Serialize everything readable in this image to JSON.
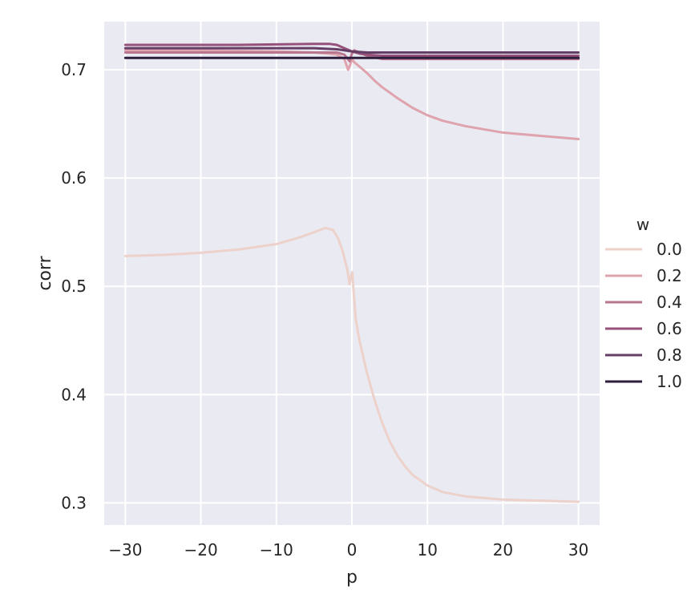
{
  "chart_data": {
    "type": "line",
    "xlabel": "p",
    "ylabel": "corr",
    "xlim": [
      -32.8,
      32.8
    ],
    "ylim": [
      0.2795,
      0.7445
    ],
    "xticks": [
      -30,
      -20,
      -10,
      0,
      10,
      20,
      30
    ],
    "xtick_labels": [
      "−30",
      "−20",
      "−10",
      "0",
      "10",
      "20",
      "30"
    ],
    "yticks": [
      0.3,
      0.4,
      0.5,
      0.6,
      0.7
    ],
    "ytick_labels": [
      "0.3",
      "0.4",
      "0.5",
      "0.6",
      "0.7"
    ],
    "grid": true,
    "legend": {
      "title": "w",
      "placement": "center-right"
    },
    "series": [
      {
        "name": "0.0",
        "color": "#edd1cb",
        "points": [
          [
            -30,
            0.528
          ],
          [
            -25,
            0.529
          ],
          [
            -20,
            0.531
          ],
          [
            -15,
            0.534
          ],
          [
            -10,
            0.539
          ],
          [
            -7,
            0.545
          ],
          [
            -5,
            0.55
          ],
          [
            -3.5,
            0.554
          ],
          [
            -2.5,
            0.552
          ],
          [
            -1.8,
            0.544
          ],
          [
            -1.2,
            0.532
          ],
          [
            -0.6,
            0.515
          ],
          [
            -0.3,
            0.502
          ],
          [
            -0.1,
            0.51
          ],
          [
            0.05,
            0.513
          ],
          [
            0.2,
            0.498
          ],
          [
            0.5,
            0.47
          ],
          [
            1,
            0.45
          ],
          [
            2,
            0.42
          ],
          [
            3,
            0.395
          ],
          [
            4,
            0.374
          ],
          [
            5,
            0.357
          ],
          [
            6,
            0.344
          ],
          [
            7,
            0.334
          ],
          [
            8,
            0.326
          ],
          [
            10,
            0.316
          ],
          [
            12,
            0.31
          ],
          [
            15,
            0.306
          ],
          [
            20,
            0.303
          ],
          [
            25,
            0.302
          ],
          [
            30,
            0.301
          ]
        ]
      },
      {
        "name": "0.2",
        "color": "#dea3ad",
        "points": [
          [
            -30,
            0.718
          ],
          [
            -20,
            0.718
          ],
          [
            -10,
            0.717
          ],
          [
            -5,
            0.716
          ],
          [
            -3,
            0.715
          ],
          [
            -2,
            0.714
          ],
          [
            -1,
            0.71
          ],
          [
            -0.5,
            0.7
          ],
          [
            -0.2,
            0.705
          ],
          [
            0,
            0.71
          ],
          [
            0.3,
            0.707
          ],
          [
            1,
            0.703
          ],
          [
            2,
            0.697
          ],
          [
            3,
            0.69
          ],
          [
            4,
            0.684
          ],
          [
            5,
            0.679
          ],
          [
            6,
            0.674
          ],
          [
            8,
            0.665
          ],
          [
            10,
            0.658
          ],
          [
            12,
            0.653
          ],
          [
            15,
            0.648
          ],
          [
            20,
            0.642
          ],
          [
            25,
            0.639
          ],
          [
            30,
            0.636
          ]
        ]
      },
      {
        "name": "0.4",
        "color": "#b9778f",
        "points": [
          [
            -30,
            0.716
          ],
          [
            -15,
            0.716
          ],
          [
            -5,
            0.716
          ],
          [
            -2,
            0.716
          ],
          [
            -1,
            0.714
          ],
          [
            -0.3,
            0.708
          ],
          [
            0,
            0.715
          ],
          [
            0.3,
            0.718
          ],
          [
            1,
            0.716
          ],
          [
            2,
            0.713
          ],
          [
            4,
            0.71
          ],
          [
            6,
            0.71
          ],
          [
            10,
            0.71
          ],
          [
            15,
            0.71
          ],
          [
            20,
            0.71
          ],
          [
            30,
            0.71
          ]
        ]
      },
      {
        "name": "0.6",
        "color": "#955179",
        "points": [
          [
            -30,
            0.723
          ],
          [
            -15,
            0.723
          ],
          [
            -5,
            0.724
          ],
          [
            -3,
            0.724
          ],
          [
            -2,
            0.723
          ],
          [
            -1,
            0.72
          ],
          [
            0,
            0.717
          ],
          [
            1,
            0.715
          ],
          [
            2,
            0.714
          ],
          [
            4,
            0.713
          ],
          [
            6,
            0.713
          ],
          [
            10,
            0.713
          ],
          [
            20,
            0.713
          ],
          [
            30,
            0.713
          ]
        ]
      },
      {
        "name": "0.8",
        "color": "#653e66",
        "points": [
          [
            -30,
            0.72
          ],
          [
            -15,
            0.72
          ],
          [
            -5,
            0.72
          ],
          [
            -2,
            0.719
          ],
          [
            0,
            0.717
          ],
          [
            2,
            0.716
          ],
          [
            5,
            0.716
          ],
          [
            10,
            0.716
          ],
          [
            20,
            0.716
          ],
          [
            30,
            0.716
          ]
        ]
      },
      {
        "name": "1.0",
        "color": "#2d1e3e",
        "points": [
          [
            -30,
            0.711
          ],
          [
            -20,
            0.711
          ],
          [
            -10,
            0.711
          ],
          [
            0,
            0.711
          ],
          [
            10,
            0.711
          ],
          [
            20,
            0.711
          ],
          [
            30,
            0.711
          ]
        ]
      }
    ]
  },
  "colors": {
    "plot_background": "#eaeaf2",
    "gridline": "#ffffff",
    "text": "#262626"
  }
}
